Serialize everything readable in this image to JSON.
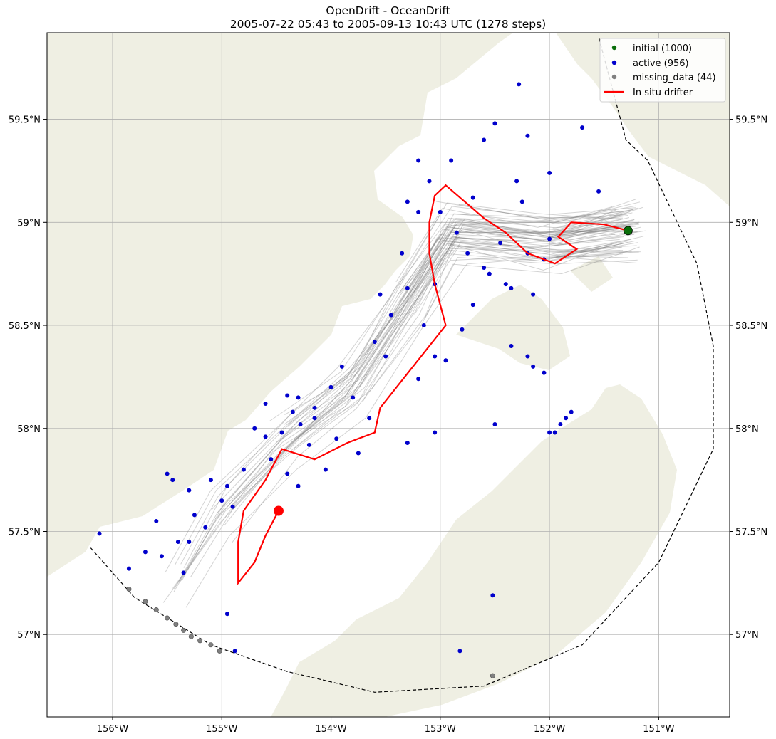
{
  "title": {
    "line1": "OpenDrift - OceanDrift",
    "line2": "2005-07-22 05:43 to 2005-09-13 10:43 UTC (1278 steps)"
  },
  "colors": {
    "land": "#efefe3",
    "ocean": "#ffffff",
    "grid": "#b0b0b0",
    "trajectory": "#808080",
    "active": "#0000cc",
    "initial": "#0a6e0a",
    "missing": "#808080",
    "drifter": "#ff0000",
    "boundary": "#000000"
  },
  "chart_data": {
    "type": "map",
    "projection": "lon/lat",
    "xlim": [
      -156.6,
      -150.35
    ],
    "ylim": [
      56.6,
      59.92
    ],
    "x_ticks": [
      -156,
      -155,
      -154,
      -153,
      -152,
      -151
    ],
    "x_tick_labels": [
      "156°W",
      "155°W",
      "154°W",
      "153°W",
      "152°W",
      "151°W"
    ],
    "y_ticks": [
      57,
      57.5,
      58,
      58.5,
      59,
      59.5
    ],
    "y_tick_labels": [
      "57°N",
      "57.5°N",
      "58°N",
      "58.5°N",
      "59°N",
      "59.5°N"
    ],
    "grid": true,
    "legend": {
      "placement": "top-right",
      "entries": [
        {
          "label": "initial (1000)",
          "kind": "point",
          "color_key": "initial"
        },
        {
          "label": "active (956)",
          "kind": "point",
          "color_key": "active"
        },
        {
          "label": "missing_data (44)",
          "kind": "point",
          "color_key": "missing"
        },
        {
          "label": "In situ drifter",
          "kind": "line",
          "color_key": "drifter"
        }
      ]
    },
    "seed_location": {
      "lon": -151.28,
      "lat": 58.96
    },
    "drifter_track": [
      [
        -151.28,
        58.96
      ],
      [
        -151.5,
        58.99
      ],
      [
        -151.8,
        59.0
      ],
      [
        -151.92,
        58.93
      ],
      [
        -151.75,
        58.87
      ],
      [
        -151.95,
        58.8
      ],
      [
        -152.2,
        58.85
      ],
      [
        -152.4,
        58.95
      ],
      [
        -152.6,
        59.02
      ],
      [
        -152.95,
        59.18
      ],
      [
        -153.05,
        59.13
      ],
      [
        -153.1,
        59.0
      ],
      [
        -153.1,
        58.85
      ],
      [
        -153.05,
        58.7
      ],
      [
        -152.95,
        58.5
      ],
      [
        -153.25,
        58.3
      ],
      [
        -153.55,
        58.1
      ],
      [
        -153.6,
        57.98
      ],
      [
        -153.85,
        57.93
      ],
      [
        -154.15,
        57.85
      ],
      [
        -154.45,
        57.9
      ],
      [
        -154.6,
        57.75
      ],
      [
        -154.8,
        57.6
      ],
      [
        -154.85,
        57.45
      ],
      [
        -154.85,
        57.25
      ],
      [
        -154.7,
        57.35
      ],
      [
        -154.6,
        57.48
      ],
      [
        -154.48,
        57.6
      ]
    ],
    "drifter_end": {
      "lon": -154.48,
      "lat": 57.6
    },
    "active_points": [
      [
        -152.28,
        59.67
      ],
      [
        -152.5,
        59.48
      ],
      [
        -151.7,
        59.46
      ],
      [
        -151.55,
        59.15
      ],
      [
        -152.9,
        59.3
      ],
      [
        -153.2,
        59.3
      ],
      [
        -152.6,
        59.4
      ],
      [
        -152.2,
        59.42
      ],
      [
        -152.0,
        59.24
      ],
      [
        -152.3,
        59.2
      ],
      [
        -153.1,
        59.2
      ],
      [
        -152.7,
        59.12
      ],
      [
        -153.2,
        59.05
      ],
      [
        -152.85,
        58.95
      ],
      [
        -152.45,
        58.9
      ],
      [
        -152.2,
        58.85
      ],
      [
        -152.0,
        58.92
      ],
      [
        -152.6,
        58.78
      ],
      [
        -152.4,
        58.7
      ],
      [
        -153.05,
        58.7
      ],
      [
        -153.3,
        58.68
      ],
      [
        -153.45,
        58.55
      ],
      [
        -153.15,
        58.5
      ],
      [
        -152.8,
        58.48
      ],
      [
        -152.7,
        58.6
      ],
      [
        -153.6,
        58.42
      ],
      [
        -153.5,
        58.35
      ],
      [
        -153.05,
        58.35
      ],
      [
        -152.95,
        58.33
      ],
      [
        -153.2,
        58.24
      ],
      [
        -153.9,
        58.3
      ],
      [
        -154.0,
        58.2
      ],
      [
        -153.8,
        58.15
      ],
      [
        -153.65,
        58.05
      ],
      [
        -154.15,
        58.05
      ],
      [
        -154.3,
        58.15
      ],
      [
        -154.35,
        58.08
      ],
      [
        -154.28,
        58.02
      ],
      [
        -154.45,
        57.98
      ],
      [
        -154.2,
        57.92
      ],
      [
        -154.6,
        57.96
      ],
      [
        -154.55,
        57.85
      ],
      [
        -154.4,
        57.78
      ],
      [
        -154.8,
        57.8
      ],
      [
        -154.95,
        57.72
      ],
      [
        -155.1,
        57.75
      ],
      [
        -155.0,
        57.65
      ],
      [
        -155.3,
        57.7
      ],
      [
        -155.25,
        57.58
      ],
      [
        -155.5,
        57.78
      ],
      [
        -155.45,
        57.75
      ],
      [
        -155.6,
        57.55
      ],
      [
        -155.4,
        57.45
      ],
      [
        -155.55,
        57.38
      ],
      [
        -155.7,
        57.4
      ],
      [
        -155.35,
        57.3
      ],
      [
        -155.85,
        57.32
      ],
      [
        -156.12,
        57.49
      ],
      [
        -154.95,
        57.1
      ],
      [
        -154.88,
        56.92
      ],
      [
        -153.05,
        57.98
      ],
      [
        -153.3,
        57.93
      ],
      [
        -152.5,
        58.02
      ],
      [
        -152.0,
        57.98
      ],
      [
        -151.85,
        58.05
      ],
      [
        -151.8,
        58.08
      ],
      [
        -152.15,
        58.3
      ],
      [
        -152.2,
        58.35
      ],
      [
        -152.35,
        58.4
      ],
      [
        -152.52,
        57.19
      ],
      [
        -152.82,
        56.92
      ],
      [
        -151.95,
        57.98
      ],
      [
        -151.9,
        58.02
      ],
      [
        -152.05,
        58.27
      ],
      [
        -154.15,
        58.1
      ],
      [
        -153.95,
        57.95
      ],
      [
        -153.75,
        57.88
      ],
      [
        -154.05,
        57.8
      ],
      [
        -154.3,
        57.72
      ],
      [
        -154.9,
        57.62
      ],
      [
        -155.15,
        57.52
      ],
      [
        -155.3,
        57.45
      ],
      [
        -154.7,
        58.0
      ],
      [
        -154.6,
        58.12
      ],
      [
        -154.4,
        58.16
      ],
      [
        -153.55,
        58.65
      ],
      [
        -153.35,
        58.85
      ],
      [
        -153.3,
        59.1
      ],
      [
        -153.0,
        59.05
      ],
      [
        -152.75,
        58.85
      ],
      [
        -152.55,
        58.75
      ],
      [
        -152.35,
        58.68
      ],
      [
        -152.15,
        58.65
      ],
      [
        -152.05,
        58.82
      ],
      [
        -152.25,
        59.1
      ]
    ],
    "missing_points": [
      [
        -155.85,
        57.22
      ],
      [
        -155.7,
        57.16
      ],
      [
        -155.6,
        57.12
      ],
      [
        -155.5,
        57.08
      ],
      [
        -155.42,
        57.05
      ],
      [
        -155.35,
        57.02
      ],
      [
        -155.28,
        56.99
      ],
      [
        -155.2,
        56.97
      ],
      [
        -155.1,
        56.95
      ],
      [
        -155.02,
        56.92
      ],
      [
        -152.52,
        56.8
      ]
    ]
  }
}
